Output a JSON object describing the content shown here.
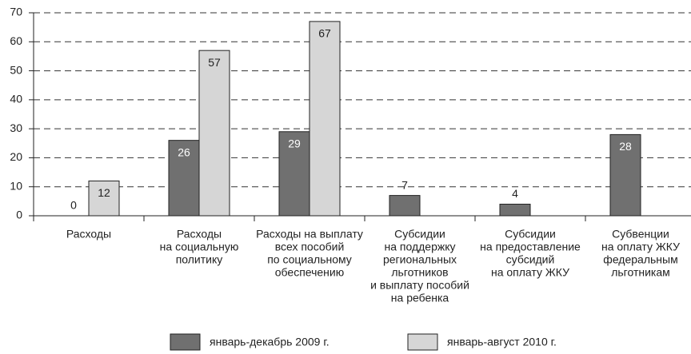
{
  "chart_data": {
    "type": "bar",
    "categories": [
      [
        "Расходы"
      ],
      [
        "Расходы",
        "на социальную",
        "политику"
      ],
      [
        "Расходы на выплату",
        "всех пособий",
        "по социальному",
        "обеспечению"
      ],
      [
        "Субсидии",
        "на поддержку",
        "региональных",
        "льготников",
        "и выплату пособий",
        "на ребенка"
      ],
      [
        "Субсидии",
        "на предоставление",
        "субсидий",
        "на оплату ЖКУ"
      ],
      [
        "Субвенции",
        "на оплату ЖКУ",
        "федеральным",
        "льготникам"
      ]
    ],
    "series": [
      {
        "name": "январь-декабрь 2009 г.",
        "color": "#707070",
        "values": [
          0,
          26,
          29,
          7,
          4,
          28
        ]
      },
      {
        "name": "январь-август 2010 г.",
        "color": "#d6d6d6",
        "values": [
          12,
          57,
          67,
          null,
          null,
          null
        ]
      }
    ],
    "ylim": [
      0,
      70
    ],
    "yticks": [
      0,
      10,
      20,
      30,
      40,
      50,
      60,
      70
    ],
    "grid": true
  }
}
